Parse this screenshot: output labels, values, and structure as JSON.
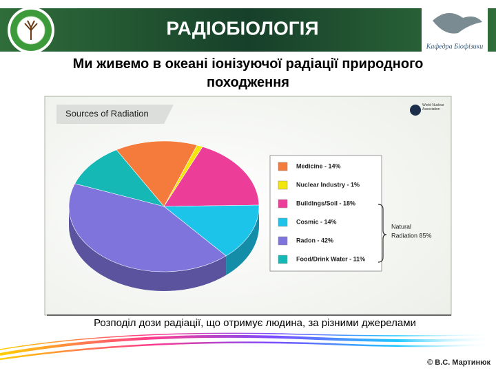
{
  "header": {
    "title": "РАДІОБІОЛОГІЯ",
    "logo_text": "Кафедра Біофізики"
  },
  "subtitle": "Ми живемо в океані іонізуючої радіації природного походження",
  "chart_data": {
    "type": "pie",
    "title": "Sources of Radiation",
    "source": "World Nuclear Association",
    "categories": [
      "Medicine - 14%",
      "Nuclear Industry - 1%",
      "Buildings/Soil - 18%",
      "Cosmic - 14%",
      "Radon - 42%",
      "Food/Drink Water - 11%"
    ],
    "values": [
      14,
      1,
      18,
      14,
      42,
      11
    ],
    "colors": [
      "#f47b3c",
      "#f3e60a",
      "#ec3e98",
      "#1cc4ea",
      "#7e74dc",
      "#15b8b4"
    ],
    "annotation": [
      "Natural",
      "Radiation 85%"
    ]
  },
  "caption": "Розподіл дози радіації, що отримує людина, за різними джерелами",
  "footer": "© В.С. Мартинюк"
}
